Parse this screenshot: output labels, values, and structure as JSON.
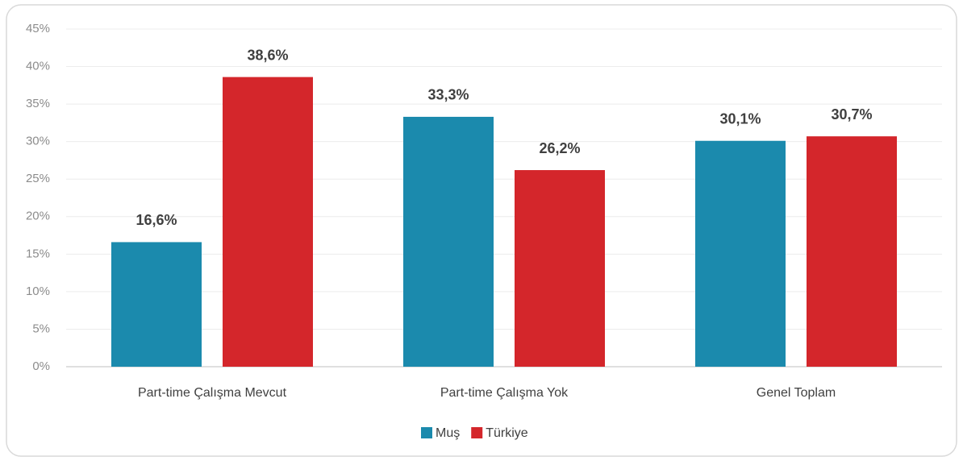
{
  "chart_data": {
    "type": "bar",
    "categories": [
      "Part-time Çalışma Mevcut",
      "Part-time Çalışma Yok",
      "Genel Toplam"
    ],
    "series": [
      {
        "name": "Muş",
        "color": "#1b8aad",
        "values": [
          16.6,
          33.3,
          30.1
        ],
        "value_labels": [
          "16,6%",
          "33,3%",
          "30,1%"
        ]
      },
      {
        "name": "Türkiye",
        "color": "#d4262b",
        "values": [
          38.6,
          26.2,
          30.7
        ],
        "value_labels": [
          "38,6%",
          "26,2%",
          "30,7%"
        ]
      }
    ],
    "ylim": [
      0,
      45
    ],
    "yticks": [
      {
        "value": 0,
        "label": "0%"
      },
      {
        "value": 5,
        "label": "5%"
      },
      {
        "value": 10,
        "label": "10%"
      },
      {
        "value": 15,
        "label": "15%"
      },
      {
        "value": 20,
        "label": "20%"
      },
      {
        "value": 25,
        "label": "25%"
      },
      {
        "value": 30,
        "label": "30%"
      },
      {
        "value": 35,
        "label": "35%"
      },
      {
        "value": 40,
        "label": "40%"
      },
      {
        "value": 45,
        "label": "45%"
      }
    ],
    "grid": true,
    "legend": "bottom"
  }
}
